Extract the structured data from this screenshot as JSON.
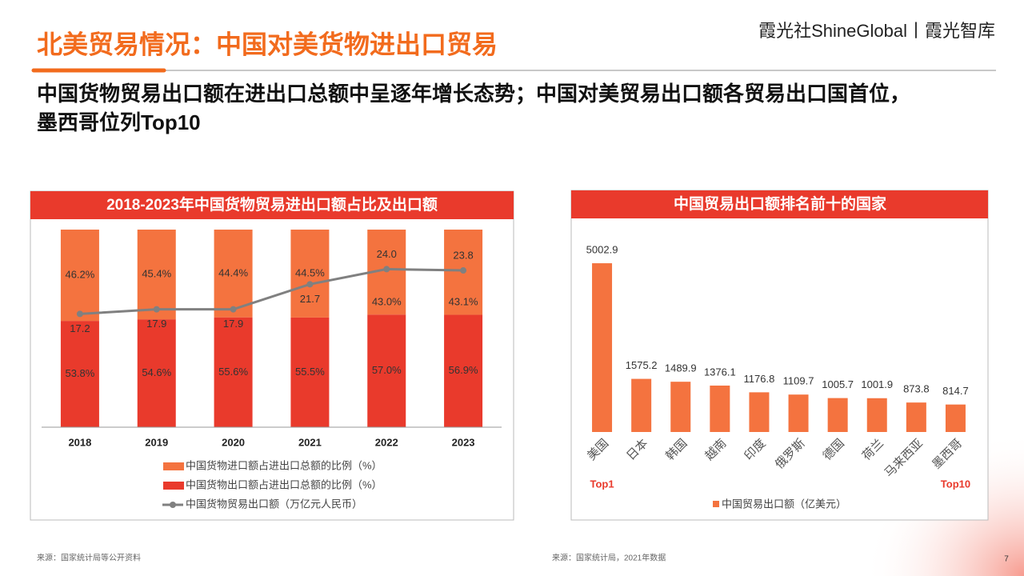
{
  "header": {
    "title": "北美贸易情况：中国对美货物进出口贸易",
    "logo": "霞光社ShineGlobal丨霞光智库",
    "subtitle_lines": [
      "中国货物贸易出口额在进出口总额中呈逐年增长态势；中国对美贸易出口额各贸易出口国首位，",
      "墨西哥位列Top10"
    ]
  },
  "chart_data": [
    {
      "type": "stacked-bar-line",
      "title": "2018-2023年中国货物贸易进出口额占比及出口额",
      "categories": [
        "2018",
        "2019",
        "2020",
        "2021",
        "2022",
        "2023"
      ],
      "ylim": [
        0,
        100
      ],
      "y2lim": [
        0,
        30
      ],
      "series": [
        {
          "name": "中国货物进口额占进出口总额的比例（%）",
          "color": "#f4733f",
          "values": [
            46.2,
            45.4,
            44.4,
            44.5,
            43.0,
            43.1
          ],
          "value_labels": [
            "46.2%",
            "45.4%",
            "44.4%",
            "44.5%",
            "43.0%",
            "43.1%"
          ]
        },
        {
          "name": "中国货物出口额占进出口总额的比例（%）",
          "color": "#e93a2c",
          "values": [
            53.8,
            54.6,
            55.6,
            55.5,
            57.0,
            56.9
          ],
          "value_labels": [
            "53.8%",
            "54.6%",
            "55.6%",
            "55.5%",
            "57.0%",
            "56.9%"
          ]
        },
        {
          "name": "中国货物贸易出口额（万亿元人民币）",
          "color": "#808080",
          "axis": "y2",
          "values": [
            17.2,
            17.9,
            17.9,
            21.7,
            24.0,
            23.8
          ],
          "value_labels": [
            "17.2",
            "17.9",
            "17.9",
            "21.7",
            "24.0",
            "23.8"
          ]
        }
      ]
    },
    {
      "type": "bar",
      "title": "中国贸易出口额排名前十的国家",
      "categories": [
        "美国",
        "日本",
        "韩国",
        "越南",
        "印度",
        "俄罗斯",
        "德国",
        "荷兰",
        "马来西亚",
        "墨西哥"
      ],
      "ylim": [
        0,
        6000
      ],
      "series": [
        {
          "name": "中国贸易出口额（亿美元）",
          "color": "#f4733f",
          "values": [
            5002.9,
            1575.2,
            1489.9,
            1376.1,
            1176.8,
            1109.7,
            1005.7,
            1001.9,
            873.8,
            814.7
          ]
        }
      ],
      "annotations": [
        "Top1",
        "Top10"
      ]
    }
  ],
  "footer": {
    "source_left": "来源：国家统计局等公开资料",
    "source_right": "来源：国家统计局，2021年数据",
    "page": "7"
  }
}
